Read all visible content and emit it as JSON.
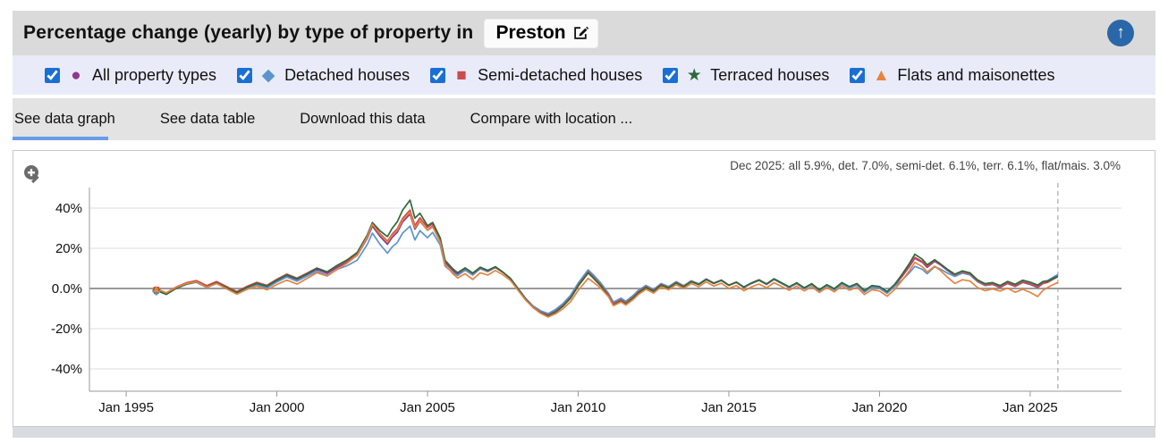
{
  "header": {
    "title": "Percentage change (yearly) by type of property in",
    "location": "Preston"
  },
  "legend": {
    "items": [
      {
        "label": "All property types",
        "marker": "●",
        "checked": true
      },
      {
        "label": "Detached houses",
        "marker": "◆",
        "checked": true
      },
      {
        "label": "Semi-detached houses",
        "marker": "■",
        "checked": true
      },
      {
        "label": "Terraced houses",
        "marker": "★",
        "checked": true
      },
      {
        "label": "Flats and maisonettes",
        "marker": "▲",
        "checked": true
      }
    ]
  },
  "tabs": [
    {
      "label": "See data graph",
      "active": true
    },
    {
      "label": "See data table",
      "active": false
    },
    {
      "label": "Download this data",
      "active": false
    },
    {
      "label": "Compare with location ...",
      "active": false
    }
  ],
  "annotation": "Dec 2025: all 5.9%, det. 7.0%, semi-det. 6.1%, terr. 6.1%, flat/mais. 3.0%",
  "ui_colors": {
    "accent_blue": "#1a6fd4",
    "header_bg": "#dadada",
    "legend_bg": "#e9ecf8",
    "tab_bg": "#e3e3e3",
    "tab_underline": "#6b9ce8",
    "arrow_button": "#2a67a8",
    "bottom_strip": "#d9dbe1"
  },
  "chart_data": {
    "type": "line",
    "title": "Percentage change (yearly) by type of property in Preston",
    "xlabel": "",
    "ylabel": "Percentage change (yearly)",
    "x_axis": {
      "min": 1993.78,
      "max": 2028.03,
      "ticks": [
        1995,
        2000,
        2005,
        2010,
        2015,
        2020,
        2025
      ],
      "tick_labels": [
        "Jan 1995",
        "Jan 2000",
        "Jan 2005",
        "Jan 2010",
        "Jan 2015",
        "Jan 2020",
        "Jan 2025"
      ]
    },
    "y_axis": {
      "min": -51.1,
      "max": 50.2,
      "ticks": [
        40,
        20,
        0,
        -20,
        -40
      ],
      "tick_labels": [
        "40%",
        "20%",
        "0.0%",
        "-20%",
        "-40%"
      ]
    },
    "grid": true,
    "legend_position": "top",
    "cursor_line_x": 2025.92,
    "latest_values": {
      "date": "Dec 2025",
      "all": 5.9,
      "det": 7.0,
      "semi_det": 6.1,
      "terr": 6.1,
      "flat_mais": 3.0
    },
    "base_x": [
      1996.0,
      1996.33,
      1996.67,
      1997.0,
      1997.33,
      1997.67,
      1998.0,
      1998.33,
      1998.67,
      1999.0,
      1999.33,
      1999.67,
      2000.0,
      2000.33,
      2000.67,
      2001.0,
      2001.33,
      2001.67,
      2002.0,
      2002.33,
      2002.67,
      2003.0,
      2003.17,
      2003.42,
      2003.67,
      2003.83,
      2004.0,
      2004.17,
      2004.42,
      2004.58,
      2004.75,
      2005.0,
      2005.17,
      2005.42,
      2005.58,
      2005.83,
      2006.0,
      2006.25,
      2006.5,
      2006.75,
      2007.0,
      2007.25,
      2007.5,
      2007.75,
      2008.0,
      2008.25,
      2008.5,
      2008.75,
      2009.0,
      2009.25,
      2009.5,
      2009.75,
      2010.0,
      2010.33,
      2010.5,
      2010.75,
      2011.0,
      2011.17,
      2011.42,
      2011.58,
      2011.83,
      2012.0,
      2012.25,
      2012.5,
      2012.75,
      2013.0,
      2013.25,
      2013.5,
      2013.75,
      2014.0,
      2014.25,
      2014.5,
      2014.75,
      2015.0,
      2015.25,
      2015.5,
      2015.75,
      2016.0,
      2016.25,
      2016.5,
      2016.75,
      2017.0,
      2017.25,
      2017.5,
      2017.75,
      2018.0,
      2018.25,
      2018.5,
      2018.75,
      2019.0,
      2019.25,
      2019.5,
      2019.75,
      2020.0,
      2020.25,
      2020.5,
      2020.75,
      2021.0,
      2021.17,
      2021.42,
      2021.58,
      2021.83,
      2022.0,
      2022.25,
      2022.5,
      2022.75,
      2023.0,
      2023.25,
      2023.5,
      2023.75,
      2024.0,
      2024.25,
      2024.5,
      2024.75,
      2025.0,
      2025.25,
      2025.42,
      2025.58,
      2025.75,
      2025.92
    ],
    "base_y": [
      -0.5,
      -2.5,
      0.5,
      2.5,
      3.5,
      1.0,
      3.0,
      0.5,
      -2.0,
      0.5,
      2.5,
      1.0,
      4.0,
      6.5,
      4.5,
      7.0,
      9.5,
      7.5,
      10.5,
      13.0,
      16.5,
      25.0,
      31.0,
      26.0,
      22.0,
      25.5,
      28.0,
      33.0,
      37.0,
      29.5,
      33.5,
      29.0,
      31.0,
      24.0,
      13.0,
      9.0,
      7.0,
      9.5,
      7.0,
      10.0,
      8.5,
      10.5,
      8.0,
      5.0,
      0.0,
      -5.0,
      -9.0,
      -11.5,
      -13.0,
      -11.0,
      -8.0,
      -4.0,
      2.0,
      8.5,
      6.0,
      2.0,
      -3.0,
      -7.5,
      -5.5,
      -7.0,
      -4.0,
      -1.5,
      1.0,
      -1.0,
      2.0,
      0.5,
      3.0,
      1.0,
      3.5,
      2.0,
      4.5,
      2.5,
      4.0,
      1.5,
      3.0,
      0.5,
      2.5,
      4.0,
      2.0,
      4.5,
      2.5,
      0.5,
      2.5,
      0.0,
      2.0,
      -1.0,
      1.5,
      -0.5,
      2.5,
      0.5,
      2.0,
      -1.5,
      1.0,
      0.5,
      -2.0,
      1.5,
      6.0,
      11.0,
      15.0,
      13.0,
      10.5,
      13.5,
      12.0,
      9.0,
      6.5,
      8.0,
      7.0,
      3.5,
      1.5,
      2.0,
      0.5,
      2.5,
      1.0,
      3.0,
      2.0,
      0.5,
      2.5,
      3.0,
      4.5,
      5.9
    ],
    "series": [
      {
        "name": "All property types",
        "short": "all",
        "color": "#8b3a8f",
        "marker": "●",
        "offsets": [
          [
            1996,
            0
          ],
          [
            2026,
            0
          ]
        ]
      },
      {
        "name": "Detached houses",
        "short": "det.",
        "color": "#5b94ce",
        "marker": "◆",
        "offsets": [
          [
            1996,
            -0.3
          ],
          [
            2002,
            -1.0
          ],
          [
            2003.2,
            -3.5
          ],
          [
            2004.42,
            -6.0
          ],
          [
            2005.2,
            -3.0
          ],
          [
            2006,
            -0.5
          ],
          [
            2009,
            0.5
          ],
          [
            2010.5,
            0.8
          ],
          [
            2015,
            0.2
          ],
          [
            2020.5,
            -0.5
          ],
          [
            2021.17,
            -4.0
          ],
          [
            2021.9,
            -2.5
          ],
          [
            2022.5,
            -0.5
          ],
          [
            2024,
            0.2
          ],
          [
            2025.92,
            1.1
          ]
        ]
      },
      {
        "name": "Semi-detached houses",
        "short": "semi-det.",
        "color": "#c94c4c",
        "marker": "■",
        "offsets": [
          [
            1996,
            0.3
          ],
          [
            2002.5,
            0.8
          ],
          [
            2003.2,
            1.2
          ],
          [
            2004.42,
            2.0
          ],
          [
            2005.5,
            0.8
          ],
          [
            2009,
            -0.5
          ],
          [
            2014,
            0.1
          ],
          [
            2021.17,
            0.5
          ],
          [
            2023,
            0.3
          ],
          [
            2025.92,
            0.2
          ]
        ]
      },
      {
        "name": "Terraced houses",
        "short": "terr.",
        "color": "#2d6b3c",
        "marker": "★",
        "offsets": [
          [
            1996,
            -0.5
          ],
          [
            2001,
            0.3
          ],
          [
            2003.2,
            1.8
          ],
          [
            2004.42,
            7.0
          ],
          [
            2004.9,
            2.5
          ],
          [
            2005.5,
            1.0
          ],
          [
            2007,
            0.5
          ],
          [
            2009,
            -0.8
          ],
          [
            2011.5,
            -0.8
          ],
          [
            2013,
            -0.3
          ],
          [
            2016,
            0.3
          ],
          [
            2020.5,
            0.5
          ],
          [
            2021.17,
            2.0
          ],
          [
            2022,
            0.5
          ],
          [
            2023,
            0.8
          ],
          [
            2025.25,
            1.2
          ],
          [
            2025.92,
            0.2
          ]
        ]
      },
      {
        "name": "Flats and maisonettes",
        "short": "flat/mais.",
        "color": "#e8833f",
        "marker": "▲",
        "offsets": [
          [
            1996,
            0.5
          ],
          [
            1999,
            -1.0
          ],
          [
            2000.5,
            -2.5
          ],
          [
            2002,
            -1.0
          ],
          [
            2003.2,
            1.0
          ],
          [
            2004.42,
            1.0
          ],
          [
            2005.5,
            -1.0
          ],
          [
            2006.5,
            -2.5
          ],
          [
            2007.5,
            -1.2
          ],
          [
            2008.5,
            -0.5
          ],
          [
            2009.2,
            -1.5
          ],
          [
            2010.33,
            -3.5
          ],
          [
            2011,
            -1.0
          ],
          [
            2012,
            -1.5
          ],
          [
            2013.5,
            -1.0
          ],
          [
            2016,
            -1.8
          ],
          [
            2018,
            -1.0
          ],
          [
            2019.5,
            -1.5
          ],
          [
            2020.5,
            -2.0
          ],
          [
            2021.17,
            -2.0
          ],
          [
            2021.9,
            -2.5
          ],
          [
            2022.5,
            -4.0
          ],
          [
            2023.25,
            -3.0
          ],
          [
            2024,
            -1.8
          ],
          [
            2025.25,
            -4.5
          ],
          [
            2025.58,
            -2.5
          ],
          [
            2025.92,
            -2.9
          ]
        ]
      }
    ]
  }
}
